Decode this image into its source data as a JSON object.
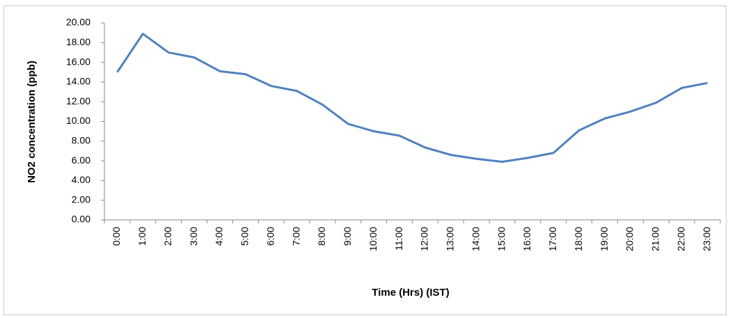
{
  "chart_data": {
    "type": "line",
    "xlabel": "Time (Hrs) (IST)",
    "ylabel": "NO2 concentration (ppb)",
    "categories": [
      "0:00",
      "1:00",
      "2:00",
      "3:00",
      "4:00",
      "5:00",
      "6:00",
      "7:00",
      "8:00",
      "9:00",
      "10:00",
      "11:00",
      "12:00",
      "13:00",
      "14:00",
      "15:00",
      "16:00",
      "17:00",
      "18:00",
      "19:00",
      "20:00",
      "21:00",
      "22:00",
      "23:00"
    ],
    "values": [
      15.0,
      18.9,
      17.0,
      16.5,
      15.1,
      14.8,
      13.6,
      13.1,
      11.7,
      9.75,
      9.0,
      8.55,
      7.35,
      6.6,
      6.2,
      5.9,
      6.3,
      6.8,
      9.1,
      10.3,
      11.0,
      11.9,
      13.4,
      13.9
    ],
    "color": "#4f81bd",
    "ylim": [
      0,
      20
    ],
    "yticks": [
      {
        "value": 0,
        "label": "0.00"
      },
      {
        "value": 2,
        "label": "2.00"
      },
      {
        "value": 4,
        "label": "4.00"
      },
      {
        "value": 6,
        "label": "6.00"
      },
      {
        "value": 8,
        "label": "8.00"
      },
      {
        "value": 10,
        "label": "10.00"
      },
      {
        "value": 12,
        "label": "12.00"
      },
      {
        "value": 14,
        "label": "14.00"
      },
      {
        "value": 16,
        "label": "16.00"
      },
      {
        "value": 18,
        "label": "18.00"
      },
      {
        "value": 20,
        "label": "20.00"
      }
    ],
    "grid": false
  }
}
